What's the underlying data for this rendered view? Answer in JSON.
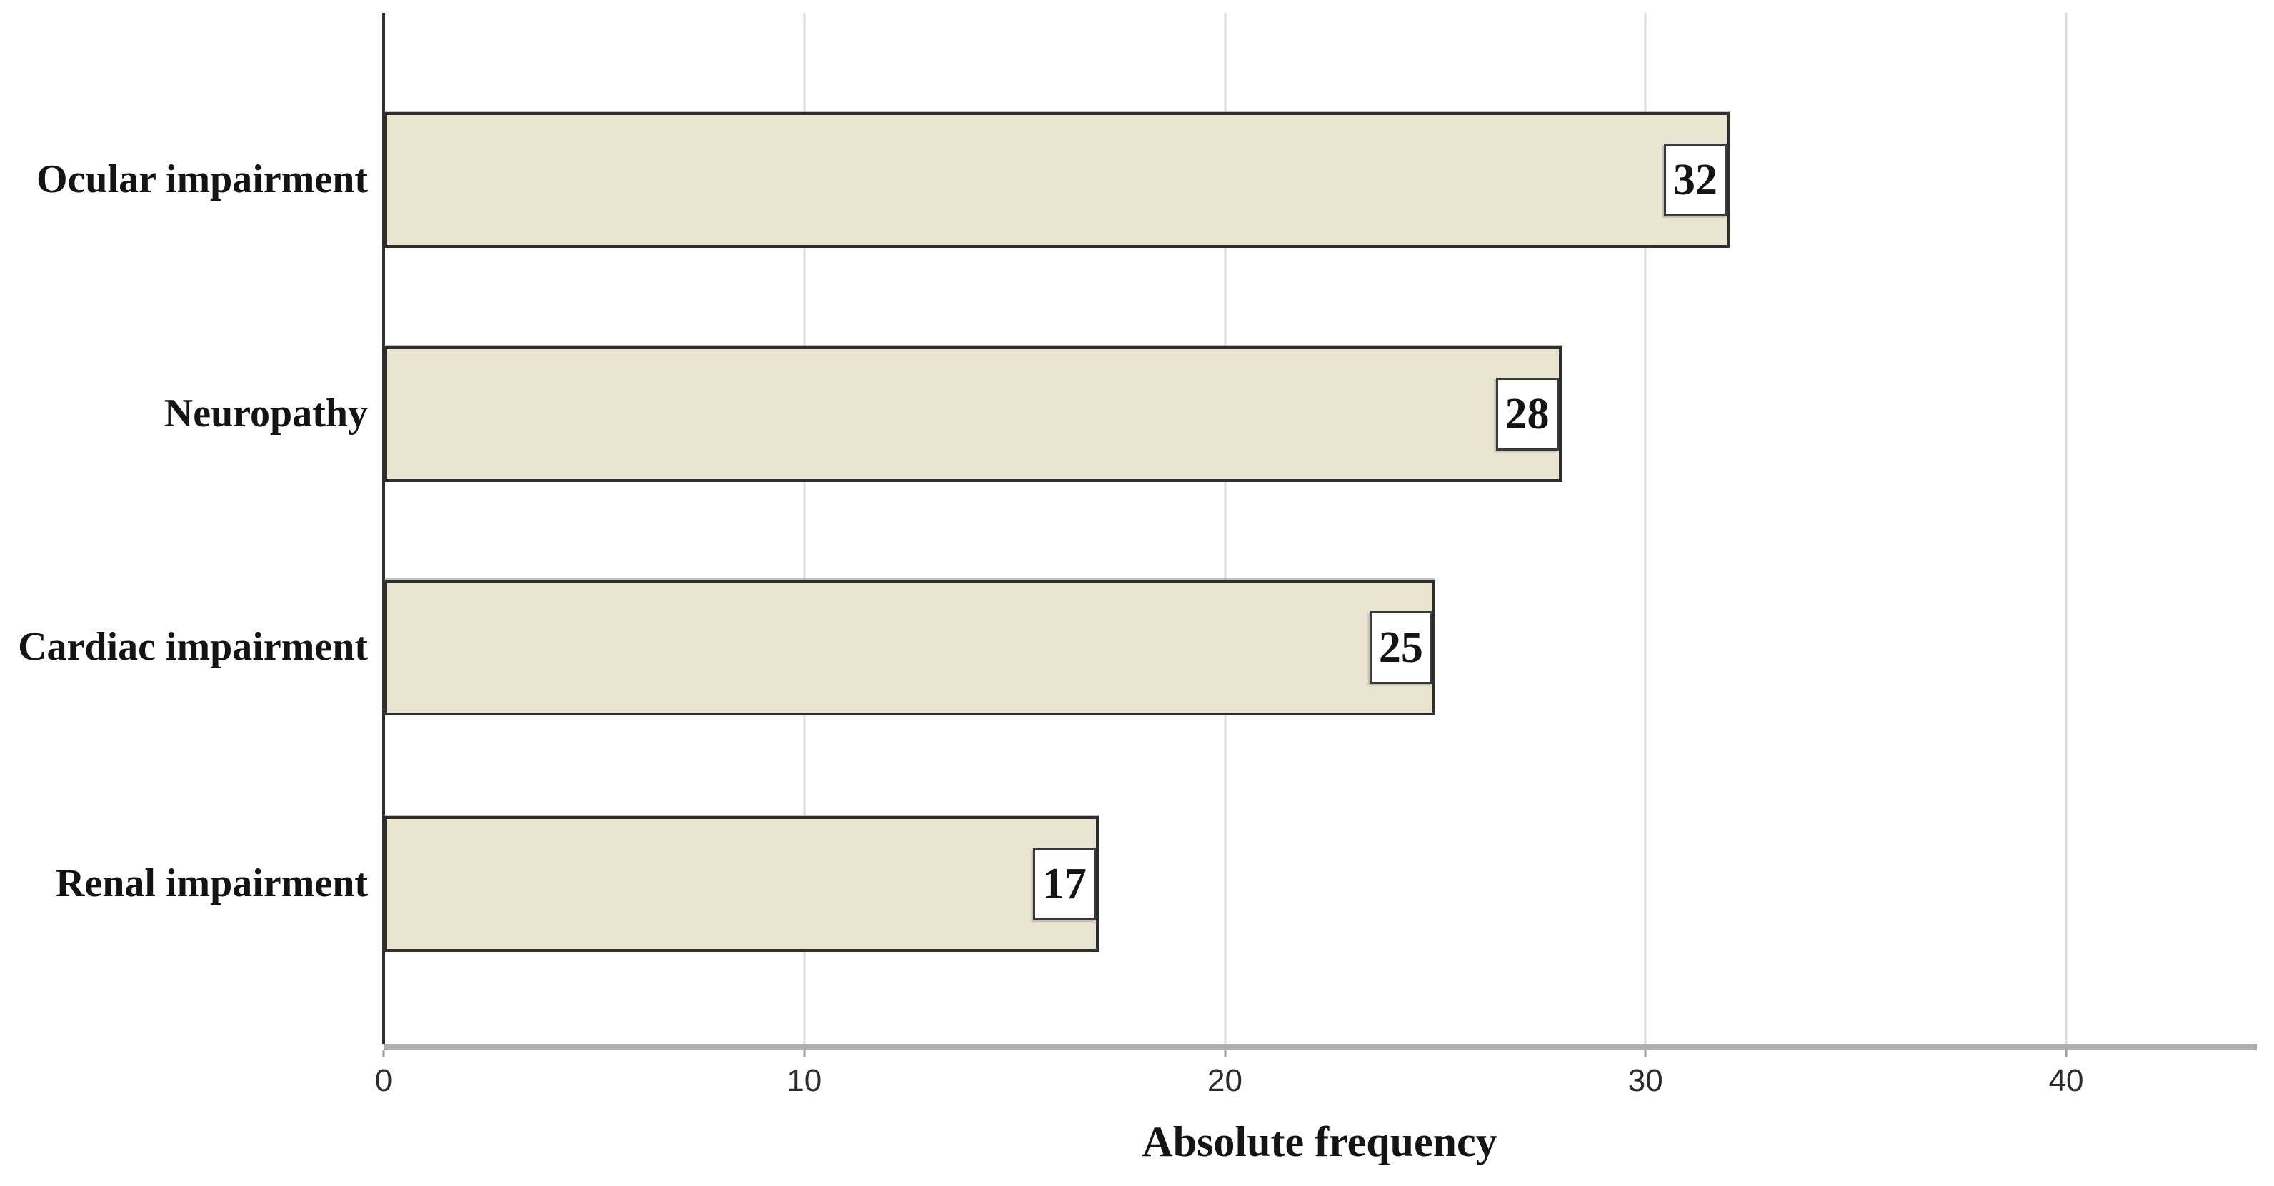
{
  "figure": {
    "background": "#ffffff"
  },
  "chart_data": {
    "type": "bar",
    "orientation": "horizontal",
    "title": "",
    "xlabel": "Absolute frequency",
    "ylabel": "",
    "categories": [
      "Ocular impairment",
      "Neuropathy",
      "Cardiac impairment",
      "Renal impairment"
    ],
    "values": [
      32,
      28,
      25,
      17
    ],
    "value_labels": [
      "32",
      "28",
      "25",
      "17"
    ],
    "x_ticks": [
      0,
      10,
      20,
      30,
      40
    ],
    "x_tick_labels": [
      "0",
      "10",
      "20",
      "30",
      "40"
    ],
    "xlim": [
      0,
      44.5
    ],
    "grid": "vertical-major-gridlines",
    "legend": "none",
    "value_label_style": "boxed-at-bar-end",
    "colors": {
      "bar_fill": "#eae5d0",
      "bar_border": "#2e2e2e",
      "gridline": "#dcdcdc",
      "axis_line": "#b0b0b0",
      "tick_mark": "#9e9e9e",
      "y_axis_line": "#2e2e2e",
      "label_box_bg": "#ffffff",
      "label_box_border": "#3a3a3a",
      "text": "#141414"
    }
  }
}
